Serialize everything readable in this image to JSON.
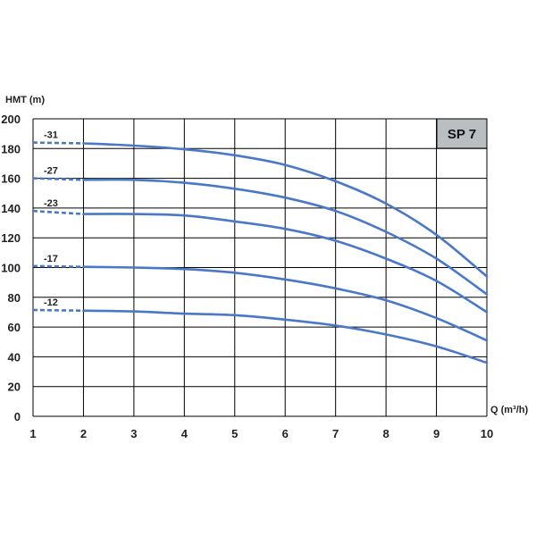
{
  "chart_data": {
    "type": "line",
    "ylabel": "HMT (m)",
    "xlabel": "Q (m³/h)",
    "badge": "SP 7",
    "xlim": [
      1,
      10
    ],
    "ylim": [
      0,
      200
    ],
    "x_ticks": [
      1,
      2,
      3,
      4,
      5,
      6,
      7,
      8,
      9,
      10
    ],
    "y_ticks": [
      0,
      20,
      40,
      60,
      80,
      100,
      120,
      140,
      160,
      180,
      200
    ],
    "grid": true,
    "line_color": "#4a78c8",
    "dashed_segment_end_x": 2,
    "series": [
      {
        "name": "-31",
        "x": [
          1,
          2,
          3,
          4,
          5,
          6,
          7,
          8,
          9,
          10
        ],
        "values": [
          184,
          183.5,
          182,
          179.5,
          175.5,
          169,
          158,
          143,
          122,
          94
        ]
      },
      {
        "name": "-27",
        "x": [
          1,
          2,
          3,
          4,
          5,
          6,
          7,
          8,
          9,
          10
        ],
        "values": [
          160,
          159,
          159,
          157,
          153,
          147,
          138,
          124,
          106,
          82
        ]
      },
      {
        "name": "-23",
        "x": [
          1,
          2,
          3,
          4,
          5,
          6,
          7,
          8,
          9,
          10
        ],
        "values": [
          138,
          136,
          136,
          135,
          131,
          126,
          118,
          106,
          91,
          70
        ]
      },
      {
        "name": "-17",
        "x": [
          1,
          2,
          3,
          4,
          5,
          6,
          7,
          8,
          9,
          10
        ],
        "values": [
          101,
          100.5,
          100,
          99,
          96.5,
          92,
          86,
          78,
          66,
          51
        ]
      },
      {
        "name": "-12",
        "x": [
          1,
          2,
          3,
          4,
          5,
          6,
          7,
          8,
          9,
          10
        ],
        "values": [
          71.5,
          71,
          70.5,
          69,
          68,
          65,
          61,
          55,
          47,
          36
        ]
      }
    ]
  }
}
